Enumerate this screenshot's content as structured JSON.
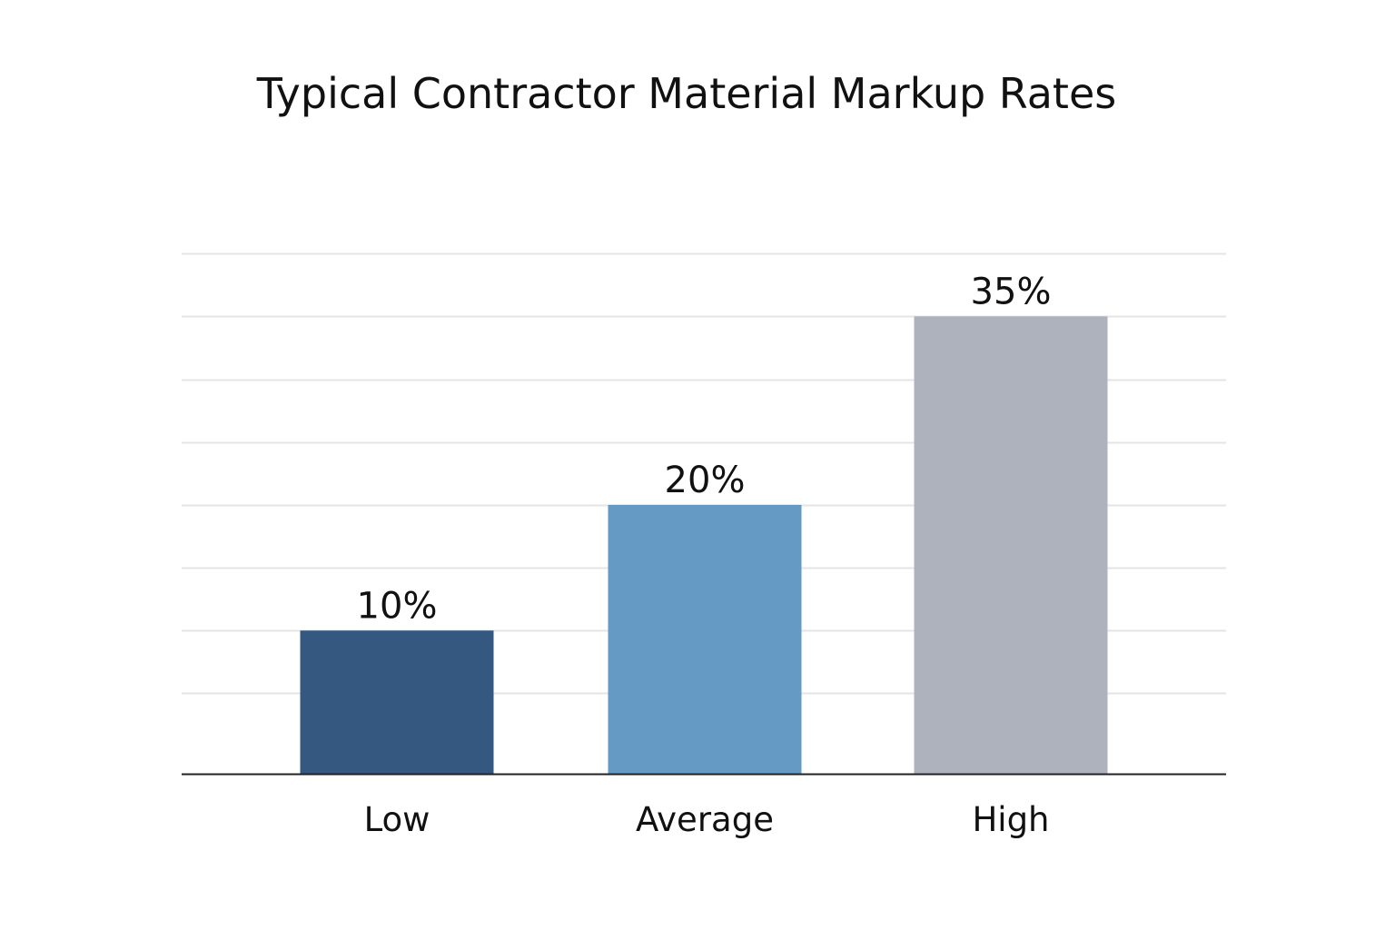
{
  "chart_data": {
    "type": "bar",
    "title": "Typical Contractor Material Markup Rates",
    "categories": [
      "Low",
      "Average",
      "High"
    ],
    "values": [
      10,
      20,
      35
    ],
    "value_labels": [
      "10%",
      "20%",
      "35%"
    ],
    "value_suffix": "%",
    "xlabel": "",
    "ylabel": "",
    "ylim": [
      -1.4,
      45
    ],
    "yticks": [
      5,
      10,
      15,
      20,
      25,
      30,
      35,
      40
    ],
    "grid": true,
    "legend": "none",
    "colors": [
      "#34587f",
      "#659ac5",
      "#adb2bc"
    ],
    "grid_color": "#e4e4e4",
    "axis_color": "#222222"
  }
}
